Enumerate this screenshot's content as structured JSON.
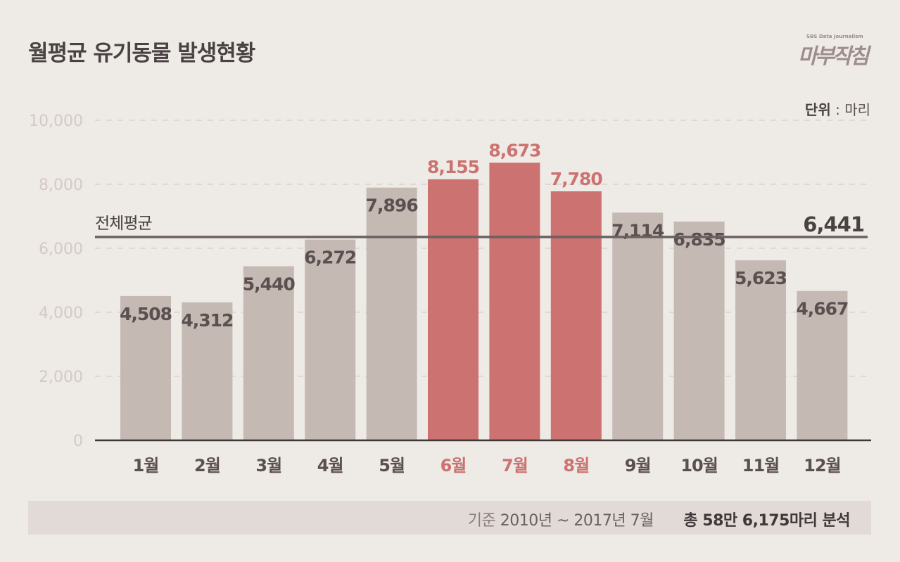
{
  "chart_data": {
    "type": "bar",
    "title": "월평균 유기동물 발생현황",
    "unit_label": "단위",
    "unit_value": "마리",
    "categories": [
      "1월",
      "2월",
      "3월",
      "4월",
      "5월",
      "6월",
      "7월",
      "8월",
      "9월",
      "10월",
      "11월",
      "12월"
    ],
    "values": [
      4508,
      4312,
      5440,
      6272,
      7896,
      8155,
      8673,
      7780,
      7114,
      6835,
      5623,
      4667
    ],
    "value_labels": [
      "4,508",
      "4,312",
      "5,440",
      "6,272",
      "7,896",
      "8,155",
      "8,673",
      "7,780",
      "7,114",
      "6,835",
      "5,623",
      "4,667"
    ],
    "highlighted": [
      "6월",
      "7월",
      "8월"
    ],
    "ylim": [
      0,
      10000
    ],
    "yticks": [
      0,
      2000,
      4000,
      6000,
      8000,
      10000
    ],
    "ytick_labels": [
      "0",
      "2,000",
      "4,000",
      "6,000",
      "8,000",
      "10,000"
    ],
    "grid": true,
    "reference_line": {
      "label": "전체평균",
      "value": 6441,
      "value_label": "6,441"
    },
    "colors": {
      "bar": "#c5b9b4",
      "highlight": "#cc7270",
      "text": "#5a5050",
      "axis_tick": "#d3c9c5",
      "line": "#6b6060",
      "background": "#eeeae6"
    }
  },
  "logo": {
    "sub": "SBS Data Journalism",
    "main": "마부작침"
  },
  "footer": {
    "period_label": "기준",
    "period": "2010년 ~ 2017년 7월",
    "total": "총 58만 6,175마리 분석"
  }
}
